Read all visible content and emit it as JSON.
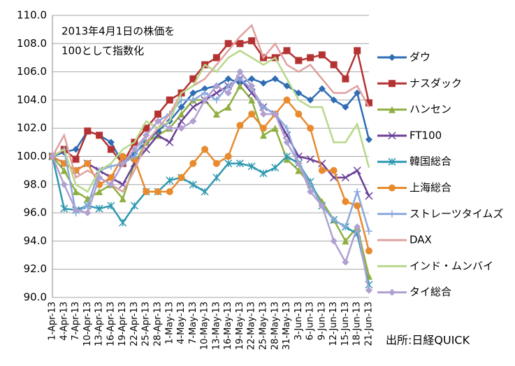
{
  "chart_data": {
    "type": "line",
    "annotation": [
      "2013年4月1日の株価を",
      "100として指数化"
    ],
    "source": "出所:日経QUICK",
    "categories": [
      "1-Apr-13",
      "4-Apr-13",
      "7-Apr-13",
      "10-Apr-13",
      "13-Apr-13",
      "16-Apr-13",
      "19-Apr-13",
      "22-Apr-13",
      "25-Apr-13",
      "28-Apr-13",
      "1-May-13",
      "4-May-13",
      "7-May-13",
      "10-May-13",
      "13-May-13",
      "16-May-13",
      "19-May-13",
      "22-May-13",
      "25-May-13",
      "28-May-13",
      "31-May-13",
      "3-Jun-13",
      "6-Jun-13",
      "9-Jun-13",
      "12-Jun-13",
      "15-Jun-13",
      "18-Jun-13",
      "21-Jun-13"
    ],
    "ylim": [
      90,
      110
    ],
    "yticks": [
      {
        "value": 90,
        "label": "90.0"
      },
      {
        "value": 92,
        "label": "92.0"
      },
      {
        "value": 94,
        "label": "94.0"
      },
      {
        "value": 96,
        "label": "96.0"
      },
      {
        "value": 98,
        "label": "98.0"
      },
      {
        "value": 100,
        "label": "100.0"
      },
      {
        "value": 102,
        "label": "102.0"
      },
      {
        "value": 104,
        "label": "104.0"
      },
      {
        "value": 106,
        "label": "106.0"
      },
      {
        "value": 108,
        "label": "108.0"
      },
      {
        "value": 110,
        "label": "110.0"
      }
    ],
    "grid": true,
    "legend": "right",
    "series": [
      {
        "name": "ダウ",
        "color": "#2e6db4",
        "marker": "diamond",
        "values": [
          100,
          100.3,
          100.5,
          101.8,
          101.5,
          101,
          99.5,
          100.2,
          101,
          101.8,
          102.5,
          103.5,
          104.5,
          104.8,
          105,
          105.5,
          105.2,
          105.5,
          105.2,
          105.5,
          105,
          104.5,
          104,
          104.8,
          104,
          103.5,
          104.5,
          101.2
        ]
      },
      {
        "name": "ナスダック",
        "color": "#b53232",
        "marker": "square",
        "values": [
          100,
          100.5,
          99.8,
          101.8,
          101.5,
          100.5,
          99.5,
          101,
          102,
          103,
          104,
          104.5,
          105.5,
          106.5,
          107,
          108,
          108,
          108.2,
          107,
          107,
          107.5,
          106.8,
          107,
          107.2,
          106.5,
          105.5,
          107.5,
          103.8
        ]
      },
      {
        "name": "ハンセン",
        "color": "#8fb040",
        "marker": "triangle",
        "values": [
          100,
          99,
          97.5,
          97,
          97.5,
          98,
          97,
          99.5,
          101,
          101.5,
          102,
          103,
          104,
          104,
          103,
          103.5,
          105,
          104,
          101.5,
          102,
          99.8,
          99,
          98,
          96.8,
          95.5,
          94,
          95,
          91.5
        ]
      },
      {
        "name": "FT100",
        "color": "#6a3f98",
        "marker": "x",
        "values": [
          100,
          99.5,
          99,
          99.5,
          99,
          98.5,
          98,
          99.5,
          100.5,
          101.5,
          101,
          102.5,
          103.5,
          104,
          104.5,
          105,
          105.5,
          104.5,
          103.5,
          103,
          101.5,
          100,
          99.8,
          99.5,
          98.5,
          98.5,
          99,
          97.2
        ]
      },
      {
        "name": "韓国総合",
        "color": "#2f98b0",
        "marker": "star",
        "values": [
          100,
          96.3,
          96.2,
          96.5,
          96.3,
          96.5,
          95.3,
          96.5,
          97.5,
          97.5,
          98.3,
          98.5,
          98,
          97.5,
          98.5,
          99.5,
          99.5,
          99.3,
          98.8,
          99.2,
          100,
          99.5,
          98.2,
          96.5,
          95.5,
          95,
          94.5,
          90.9
        ]
      },
      {
        "name": "上海総合",
        "color": "#e88a2e",
        "marker": "circle",
        "values": [
          100,
          99.5,
          99,
          99.5,
          98,
          98.5,
          100,
          99.8,
          97.5,
          97.5,
          97.5,
          98.5,
          99.5,
          100.5,
          99.5,
          100,
          102.2,
          103,
          102,
          103,
          104,
          103,
          102,
          99,
          99,
          96.8,
          96.5,
          93.3
        ]
      },
      {
        "name": "ストレーツタイムズ",
        "color": "#8aa8dc",
        "marker": "plus",
        "values": [
          100,
          100.5,
          96,
          96.5,
          99,
          99.3,
          99.5,
          100,
          101.5,
          102.5,
          103,
          104,
          104,
          104.5,
          104,
          105,
          105.5,
          104.8,
          103.5,
          103,
          102,
          99.5,
          98,
          96.5,
          95.5,
          95,
          97.5,
          94.7
        ]
      },
      {
        "name": "DAX",
        "color": "#e0a0a0",
        "marker": "none",
        "values": [
          100,
          101.5,
          98.5,
          99,
          98.5,
          98,
          97.5,
          99,
          101,
          102,
          103,
          104.5,
          105,
          105.5,
          106.5,
          107.5,
          108.5,
          109.3,
          107,
          108,
          106.5,
          106,
          106.5,
          105.5,
          104.5,
          104.5,
          105,
          103.5
        ]
      },
      {
        "name": "インド・ムンバイ",
        "color": "#b8d88a",
        "marker": "none",
        "values": [
          100,
          100.5,
          98,
          97.5,
          99,
          99.5,
          100.5,
          101,
          102.5,
          102,
          102.5,
          104.5,
          105,
          106.5,
          106,
          107,
          107.5,
          107,
          106.5,
          107,
          105.5,
          104,
          103.5,
          103.5,
          101,
          101,
          102.3,
          99.2
        ]
      },
      {
        "name": "タイ総合",
        "color": "#b0a0d0",
        "marker": "diamond",
        "values": [
          100,
          98,
          96.2,
          96,
          98.5,
          98,
          99.5,
          100.5,
          101.5,
          102.5,
          102,
          102,
          102.5,
          104,
          105,
          104.5,
          106,
          105,
          103,
          103,
          101,
          99.5,
          97.5,
          96.5,
          94,
          92.5,
          95,
          90.5
        ]
      }
    ]
  }
}
